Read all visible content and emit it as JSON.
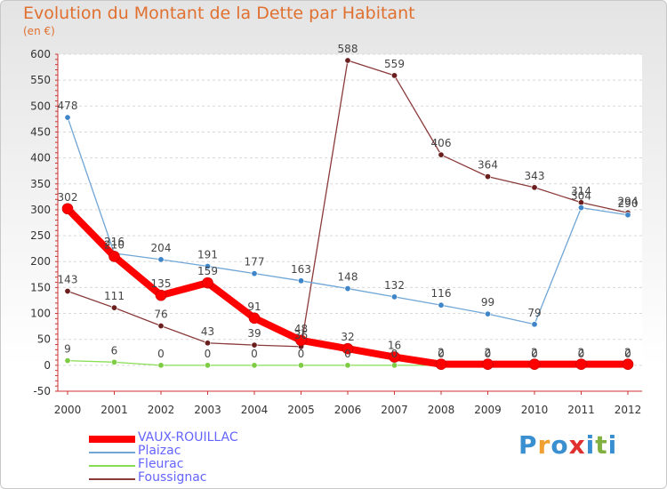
{
  "title": "Evolution du Montant de la Dette par Habitant",
  "subtitle": "(en €)",
  "logo": {
    "text": "Proxiti",
    "colors": [
      "#3a8fd0",
      "#f0a030",
      "#3a8fd0",
      "#e03030",
      "#3a8fd0",
      "#80b040",
      "#3a8fd0"
    ]
  },
  "chart_data": {
    "type": "line",
    "x": [
      "2000",
      "2001",
      "2002",
      "2003",
      "2004",
      "2005",
      "2006",
      "2007",
      "2008",
      "2009",
      "2010",
      "2011",
      "2012"
    ],
    "ylim": [
      -50,
      600
    ],
    "yticks": [
      "-50",
      "0",
      "50",
      "100",
      "150",
      "200",
      "250",
      "300",
      "350",
      "400",
      "450",
      "500",
      "550",
      "600"
    ],
    "legend_position": "bottom-left",
    "series": [
      {
        "name": "VAUX-ROUILLAC",
        "color": "#ff0000",
        "width": 8,
        "values": [
          302,
          210,
          135,
          159,
          91,
          48,
          32,
          16,
          2,
          2,
          2,
          2,
          2
        ],
        "labels": [
          "302",
          "210",
          "135",
          "159",
          "91",
          "48",
          "32",
          "16",
          "2",
          "2",
          "2",
          "2",
          "2"
        ]
      },
      {
        "name": "Plaizac",
        "color": "#6fa6d6",
        "width": 1.3,
        "values": [
          478,
          216,
          204,
          191,
          177,
          163,
          148,
          132,
          116,
          99,
          79,
          304,
          290
        ],
        "labels": [
          "478",
          "216",
          "204",
          "191",
          "177",
          "163",
          "148",
          "132",
          "116",
          "99",
          "79",
          "304",
          "290"
        ]
      },
      {
        "name": "Fleurac",
        "color": "#88dd55",
        "width": 1.3,
        "values": [
          9,
          6,
          0,
          0,
          0,
          0,
          0,
          0,
          0,
          0,
          0,
          0,
          0
        ],
        "labels": [
          "9",
          "6",
          "0",
          "0",
          "0",
          "0",
          "0",
          "0",
          "0",
          "0",
          "0",
          "0",
          "0"
        ]
      },
      {
        "name": "Foussignac",
        "color": "#8b3a3a",
        "width": 1.3,
        "values": [
          143,
          111,
          76,
          43,
          39,
          36,
          588,
          559,
          406,
          364,
          343,
          314,
          294
        ],
        "labels": [
          "143",
          "111",
          "76",
          "43",
          "39",
          "36",
          "588",
          "559",
          "406",
          "364",
          "343",
          "314",
          "294"
        ]
      }
    ]
  }
}
